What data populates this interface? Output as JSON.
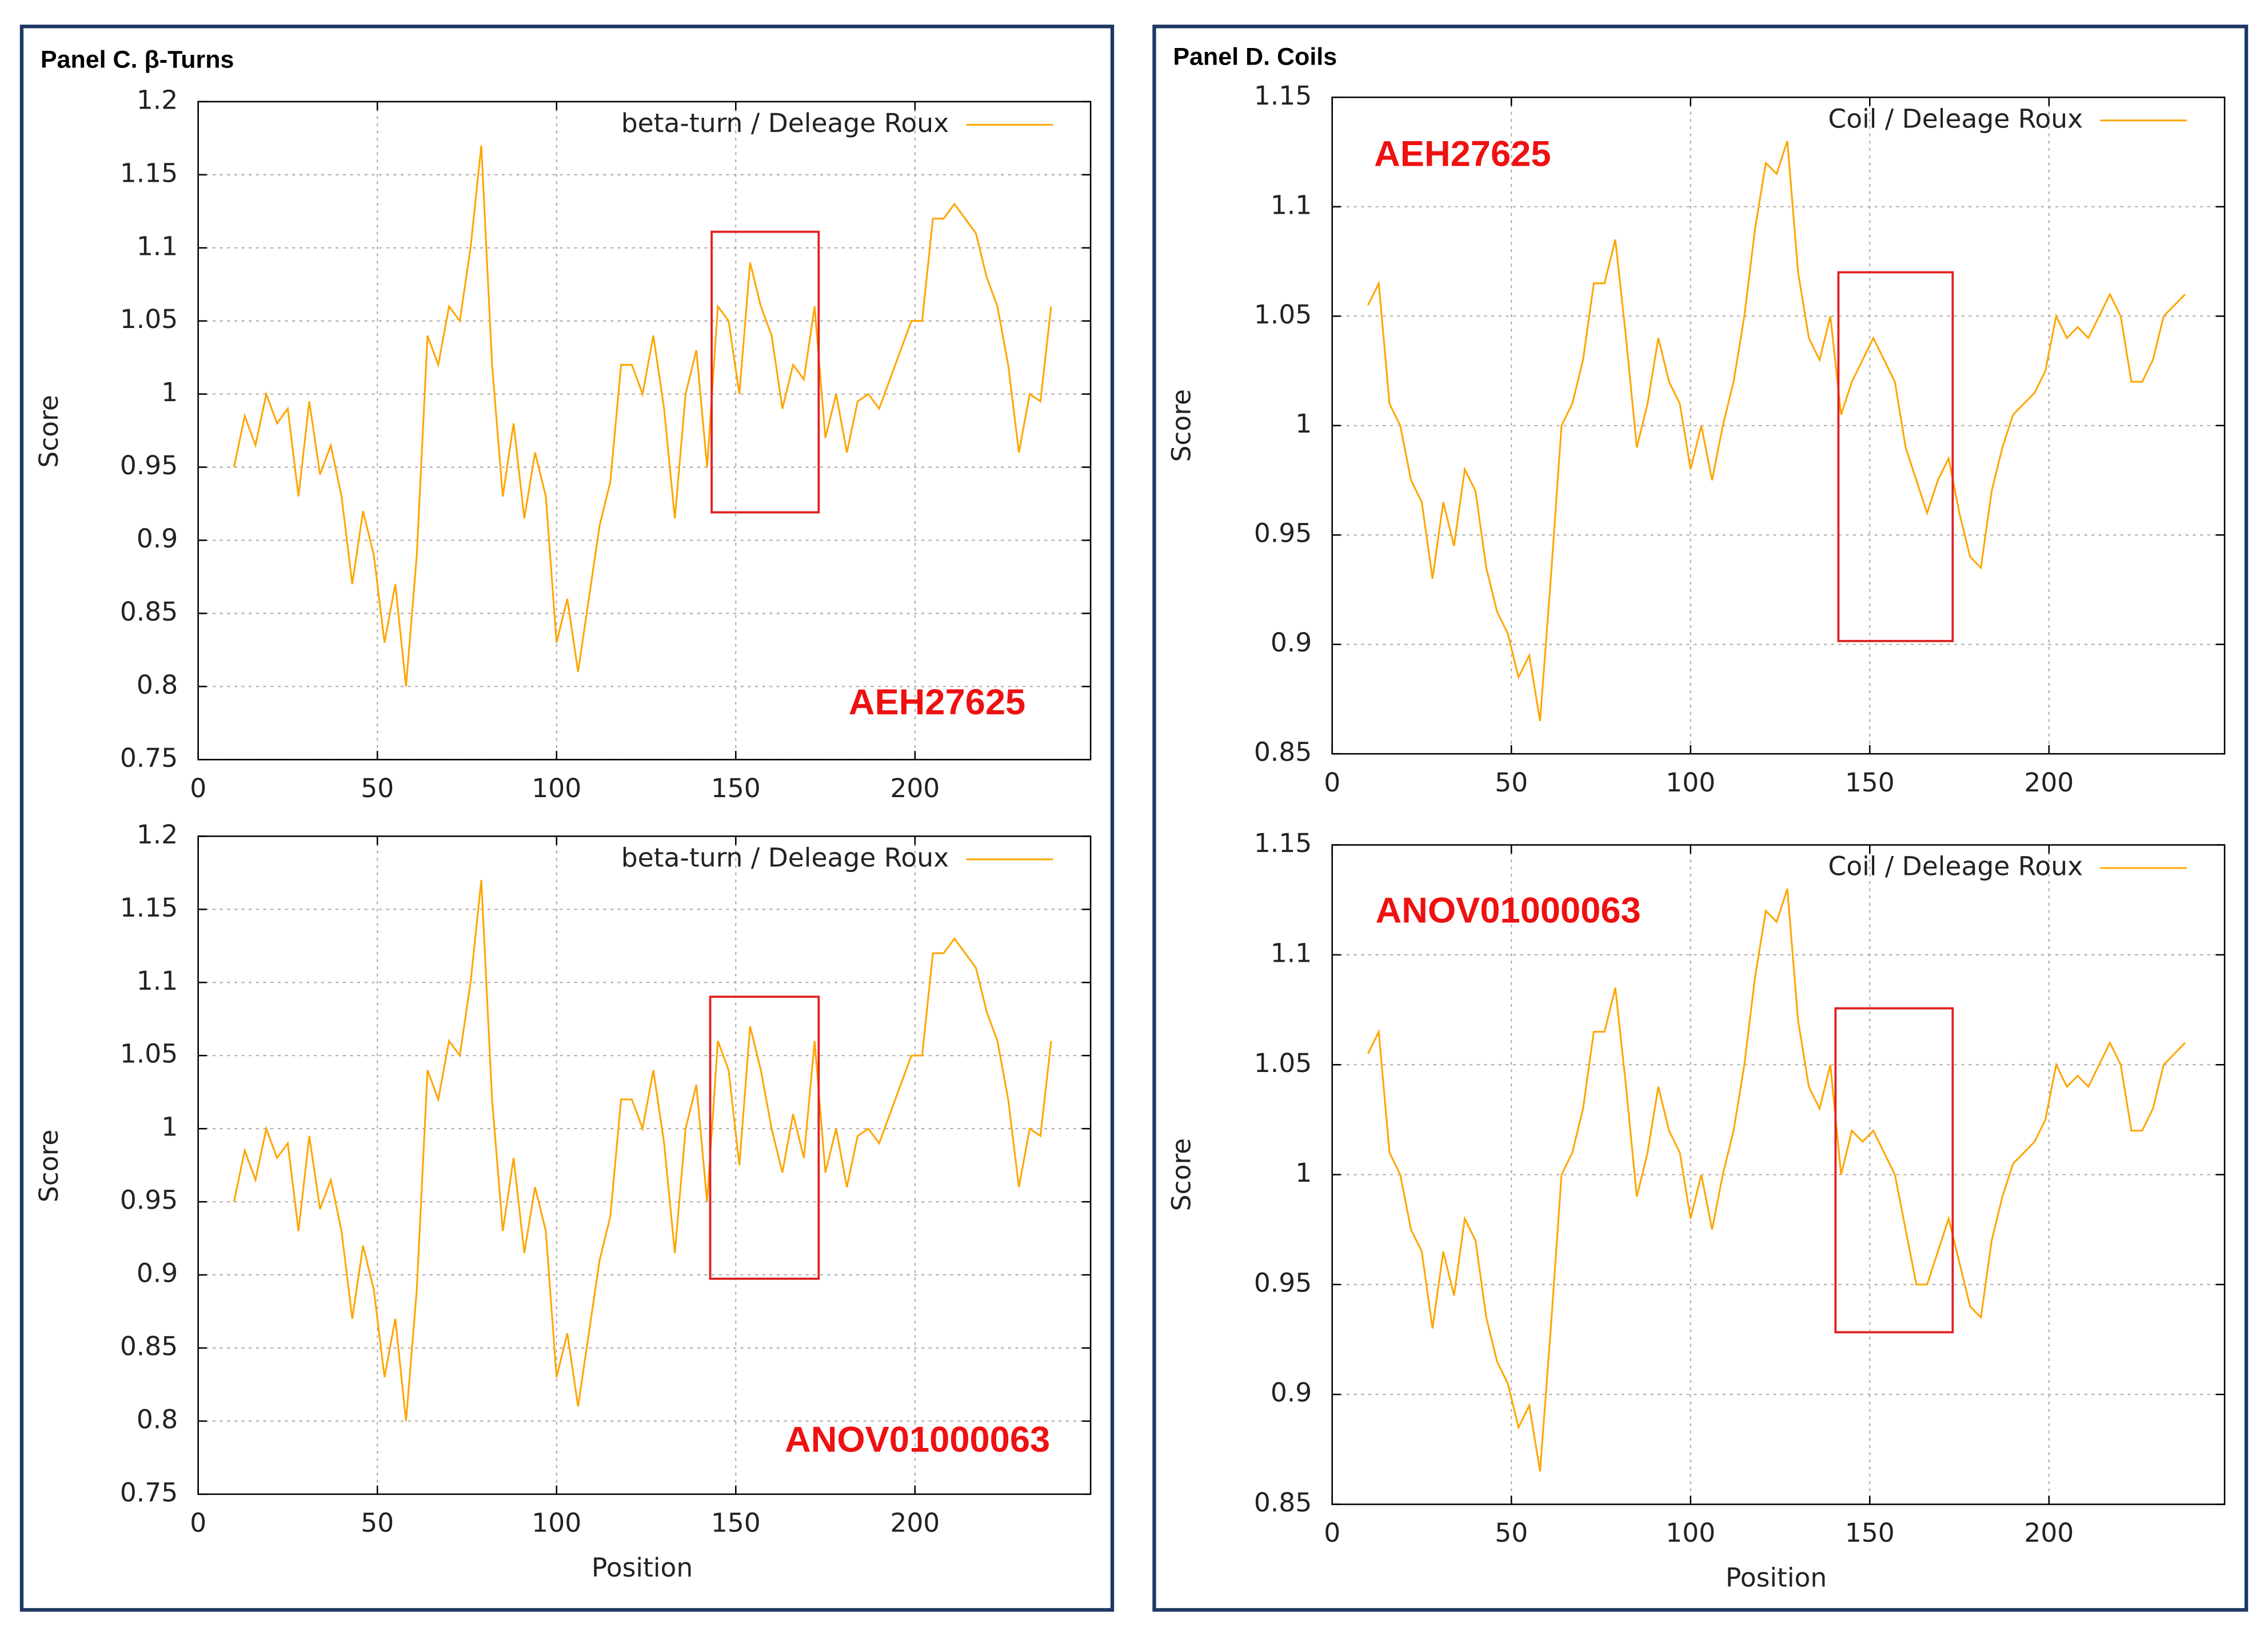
{
  "panels": [
    {
      "title": "Panel C. β-Turns"
    },
    {
      "title": "Panel D. Coils"
    }
  ],
  "chart_data": [
    {
      "type": "line",
      "ylabel": "Score",
      "annotation": "AEH27625",
      "grid": true,
      "legend": "top-right",
      "x": [
        10,
        13,
        16,
        19,
        22,
        25,
        28,
        31,
        34,
        37,
        40,
        43,
        46,
        49,
        52,
        55,
        58,
        61,
        64,
        67,
        70,
        73,
        76,
        79,
        82,
        85,
        88,
        91,
        94,
        97,
        100,
        103,
        106,
        109,
        112,
        115,
        118,
        121,
        124,
        127,
        130,
        133,
        136,
        139,
        142,
        145,
        148,
        151,
        154,
        157,
        160,
        163,
        166,
        169,
        172,
        175,
        178,
        181,
        184,
        187,
        190,
        193,
        196,
        199,
        202,
        205,
        208,
        211,
        214,
        217,
        220,
        223,
        226,
        229,
        232,
        235,
        238
      ],
      "series": [
        {
          "name": "beta-turn / Deleage  Roux",
          "color": "#ffa500",
          "values": [
            0.95,
            0.985,
            0.965,
            1.0,
            0.98,
            0.99,
            0.93,
            0.995,
            0.945,
            0.965,
            0.93,
            0.87,
            0.92,
            0.89,
            0.83,
            0.87,
            0.8,
            0.89,
            1.04,
            1.02,
            1.06,
            1.05,
            1.1,
            1.17,
            1.02,
            0.93,
            0.98,
            0.915,
            0.96,
            0.93,
            0.83,
            0.86,
            0.81,
            0.86,
            0.91,
            0.94,
            1.02,
            1.02,
            1.0,
            1.04,
            0.99,
            0.915,
            1.0,
            1.03,
            0.95,
            1.06,
            1.05,
            1.0,
            1.09,
            1.06,
            1.04,
            0.99,
            1.02,
            1.01,
            1.06,
            0.97,
            1.0,
            0.96,
            0.995,
            1.0,
            0.99,
            1.01,
            1.03,
            1.05,
            1.05,
            1.12,
            1.12,
            1.13,
            1.12,
            1.11,
            1.08,
            1.06,
            1.02,
            0.96,
            1.0,
            0.995,
            1.06
          ]
        }
      ],
      "xlim": [
        0,
        249
      ],
      "xticks": [
        0,
        50,
        100,
        150,
        200
      ],
      "ylim": [
        0.75,
        1.2
      ],
      "yticks": [
        0.75,
        0.8,
        0.85,
        0.9,
        0.95,
        1,
        1.05,
        1.1,
        1.15,
        1.2
      ]
    },
    {
      "type": "line",
      "xlabel": "Position",
      "ylabel": "Score",
      "annotation": "ANOV01000063",
      "grid": true,
      "legend": "top-right",
      "x": [
        10,
        13,
        16,
        19,
        22,
        25,
        28,
        31,
        34,
        37,
        40,
        43,
        46,
        49,
        52,
        55,
        58,
        61,
        64,
        67,
        70,
        73,
        76,
        79,
        82,
        85,
        88,
        91,
        94,
        97,
        100,
        103,
        106,
        109,
        112,
        115,
        118,
        121,
        124,
        127,
        130,
        133,
        136,
        139,
        142,
        145,
        148,
        151,
        154,
        157,
        160,
        163,
        166,
        169,
        172,
        175,
        178,
        181,
        184,
        187,
        190,
        193,
        196,
        199,
        202,
        205,
        208,
        211,
        214,
        217,
        220,
        223,
        226,
        229,
        232,
        235,
        238
      ],
      "series": [
        {
          "name": "beta-turn / Deleage  Roux",
          "color": "#ffa500",
          "values": [
            0.95,
            0.985,
            0.965,
            1.0,
            0.98,
            0.99,
            0.93,
            0.995,
            0.945,
            0.965,
            0.93,
            0.87,
            0.92,
            0.89,
            0.83,
            0.87,
            0.8,
            0.89,
            1.04,
            1.02,
            1.06,
            1.05,
            1.1,
            1.17,
            1.02,
            0.93,
            0.98,
            0.915,
            0.96,
            0.93,
            0.83,
            0.86,
            0.81,
            0.86,
            0.91,
            0.94,
            1.02,
            1.02,
            1.0,
            1.04,
            0.99,
            0.915,
            1.0,
            1.03,
            0.95,
            1.06,
            1.04,
            0.975,
            1.07,
            1.04,
            1.0,
            0.97,
            1.01,
            0.98,
            1.06,
            0.97,
            1.0,
            0.96,
            0.995,
            1.0,
            0.99,
            1.01,
            1.03,
            1.05,
            1.05,
            1.12,
            1.12,
            1.13,
            1.12,
            1.11,
            1.08,
            1.06,
            1.02,
            0.96,
            1.0,
            0.995,
            1.06
          ]
        }
      ],
      "xlim": [
        0,
        249
      ],
      "xticks": [
        0,
        50,
        100,
        150,
        200
      ],
      "ylim": [
        0.75,
        1.2
      ],
      "yticks": [
        0.75,
        0.8,
        0.85,
        0.9,
        0.95,
        1,
        1.05,
        1.1,
        1.15,
        1.2
      ]
    },
    {
      "type": "line",
      "ylabel": "Score",
      "annotation": "AEH27625",
      "grid": true,
      "legend": "top-right",
      "x": [
        10,
        13,
        16,
        19,
        22,
        25,
        28,
        31,
        34,
        37,
        40,
        43,
        46,
        49,
        52,
        55,
        58,
        61,
        64,
        67,
        70,
        73,
        76,
        79,
        82,
        85,
        88,
        91,
        94,
        97,
        100,
        103,
        106,
        109,
        112,
        115,
        118,
        121,
        124,
        127,
        130,
        133,
        136,
        139,
        142,
        145,
        148,
        151,
        154,
        157,
        160,
        163,
        166,
        169,
        172,
        175,
        178,
        181,
        184,
        187,
        190,
        193,
        196,
        199,
        202,
        205,
        208,
        211,
        214,
        217,
        220,
        223,
        226,
        229,
        232,
        235,
        238
      ],
      "series": [
        {
          "name": "Coil / Deleage  Roux",
          "color": "#ffa500",
          "values": [
            1.055,
            1.065,
            1.01,
            1.0,
            0.975,
            0.965,
            0.93,
            0.965,
            0.945,
            0.98,
            0.97,
            0.935,
            0.915,
            0.905,
            0.885,
            0.895,
            0.865,
            0.93,
            1.0,
            1.01,
            1.03,
            1.065,
            1.065,
            1.085,
            1.04,
            0.99,
            1.01,
            1.04,
            1.02,
            1.01,
            0.98,
            1.0,
            0.975,
            1.0,
            1.02,
            1.05,
            1.09,
            1.12,
            1.115,
            1.13,
            1.07,
            1.04,
            1.03,
            1.05,
            1.005,
            1.02,
            1.03,
            1.04,
            1.03,
            1.02,
            0.99,
            0.975,
            0.96,
            0.975,
            0.985,
            0.96,
            0.94,
            0.935,
            0.97,
            0.99,
            1.005,
            1.01,
            1.015,
            1.025,
            1.05,
            1.04,
            1.045,
            1.04,
            1.05,
            1.06,
            1.05,
            1.02,
            1.02,
            1.03,
            1.05,
            1.055,
            1.06
          ]
        }
      ],
      "xlim": [
        0,
        249
      ],
      "xticks": [
        0,
        50,
        100,
        150,
        200
      ],
      "ylim": [
        0.85,
        1.15
      ],
      "yticks": [
        0.85,
        0.9,
        0.95,
        1,
        1.05,
        1.1,
        1.15
      ]
    },
    {
      "type": "line",
      "xlabel": "Position",
      "ylabel": "Score",
      "annotation": "ANOV01000063",
      "grid": true,
      "legend": "top-right",
      "x": [
        10,
        13,
        16,
        19,
        22,
        25,
        28,
        31,
        34,
        37,
        40,
        43,
        46,
        49,
        52,
        55,
        58,
        61,
        64,
        67,
        70,
        73,
        76,
        79,
        82,
        85,
        88,
        91,
        94,
        97,
        100,
        103,
        106,
        109,
        112,
        115,
        118,
        121,
        124,
        127,
        130,
        133,
        136,
        139,
        142,
        145,
        148,
        151,
        154,
        157,
        160,
        163,
        166,
        169,
        172,
        175,
        178,
        181,
        184,
        187,
        190,
        193,
        196,
        199,
        202,
        205,
        208,
        211,
        214,
        217,
        220,
        223,
        226,
        229,
        232,
        235,
        238
      ],
      "series": [
        {
          "name": "Coil / Deleage  Roux",
          "color": "#ffa500",
          "values": [
            1.055,
            1.065,
            1.01,
            1.0,
            0.975,
            0.965,
            0.93,
            0.965,
            0.945,
            0.98,
            0.97,
            0.935,
            0.915,
            0.905,
            0.885,
            0.895,
            0.865,
            0.93,
            1.0,
            1.01,
            1.03,
            1.065,
            1.065,
            1.085,
            1.04,
            0.99,
            1.01,
            1.04,
            1.02,
            1.01,
            0.98,
            1.0,
            0.975,
            1.0,
            1.02,
            1.05,
            1.09,
            1.12,
            1.115,
            1.13,
            1.07,
            1.04,
            1.03,
            1.05,
            1.0,
            1.02,
            1.015,
            1.02,
            1.01,
            1.0,
            0.975,
            0.95,
            0.95,
            0.965,
            0.98,
            0.96,
            0.94,
            0.935,
            0.97,
            0.99,
            1.005,
            1.01,
            1.015,
            1.025,
            1.05,
            1.04,
            1.045,
            1.04,
            1.05,
            1.06,
            1.05,
            1.02,
            1.02,
            1.03,
            1.05,
            1.055,
            1.06
          ]
        }
      ],
      "xlim": [
        0,
        249
      ],
      "xticks": [
        0,
        50,
        100,
        150,
        200
      ],
      "ylim": [
        0.85,
        1.15
      ],
      "yticks": [
        0.85,
        0.9,
        0.95,
        1,
        1.05,
        1.1,
        1.15
      ]
    }
  ]
}
